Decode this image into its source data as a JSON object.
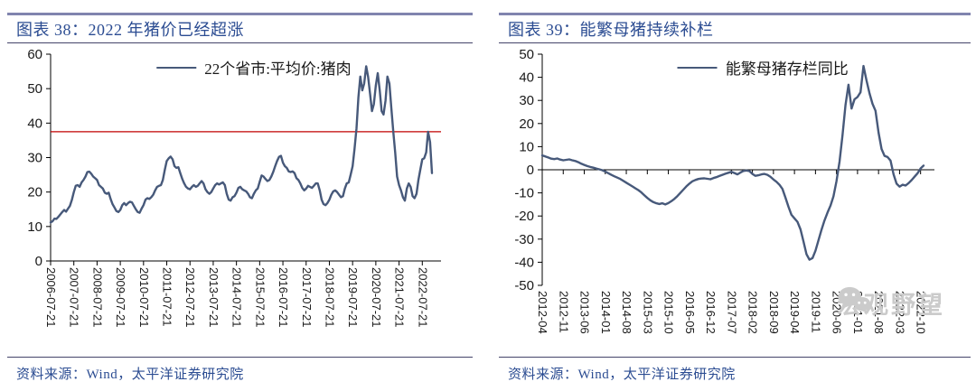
{
  "watermark": {
    "text": "宏观野望",
    "icon": "wechat-logo-icon"
  },
  "colors": {
    "series": "#47597A",
    "refline": "#C00000",
    "title_text": "#2B4C92",
    "top_border": "#8084AE",
    "rule": "#44446A",
    "axis": "#000000",
    "watermark": "#cbcbcb"
  },
  "chart_data": [
    {
      "type": "line",
      "title": "图表 38：2022 年猪价已经超涨",
      "legend": "22个省市:平均价:猪肉",
      "source": "资料来源：Wind，太平洋证券研究院",
      "series_color": "#47597A",
      "ylim": [
        0,
        60
      ],
      "y_ticks": [
        0,
        10,
        20,
        30,
        40,
        50,
        60
      ],
      "refline": {
        "value": 37.5,
        "color": "#C00000"
      },
      "x_tick_every": 12,
      "x_tick_labels": [
        "2006-07-21",
        "2007-07-21",
        "2008-07-21",
        "2009-07-21",
        "2010-07-21",
        "2011-07-21",
        "2012-07-21",
        "2013-07-21",
        "2014-07-21",
        "2015-07-21",
        "2016-07-21",
        "2017-07-21",
        "2018-07-21",
        "2019-07-21",
        "2020-07-21",
        "2021-07-21",
        "2022-07-21"
      ],
      "x_start": "2006-07",
      "x_step": "monthly",
      "values": [
        11.2,
        11.5,
        12.3,
        12.2,
        12.8,
        13.5,
        14.2,
        14.8,
        14.3,
        15.2,
        16.0,
        17.8,
        20.0,
        21.8,
        22.0,
        21.5,
        22.8,
        23.5,
        24.5,
        25.8,
        25.9,
        25.3,
        24.5,
        24.0,
        23.5,
        22.0,
        21.5,
        21.0,
        19.8,
        19.5,
        19.8,
        18.0,
        16.5,
        15.5,
        14.5,
        14.2,
        14.8,
        16.2,
        16.8,
        16.2,
        16.8,
        17.2,
        17.0,
        16.0,
        15.0,
        14.2,
        14.0,
        15.2,
        16.2,
        17.8,
        18.2,
        18.0,
        18.5,
        19.2,
        20.5,
        21.5,
        21.8,
        22.0,
        23.5,
        26.5,
        29.0,
        29.8,
        30.3,
        29.5,
        27.5,
        27.0,
        27.2,
        25.5,
        23.8,
        22.5,
        21.5,
        21.0,
        20.8,
        21.5,
        22.0,
        21.5,
        21.8,
        22.5,
        23.2,
        22.5,
        20.8,
        20.0,
        19.5,
        20.0,
        21.0,
        22.0,
        22.5,
        22.2,
        22.5,
        22.8,
        22.0,
        19.5,
        17.8,
        17.5,
        18.5,
        18.8,
        19.8,
        21.2,
        21.5,
        20.8,
        20.5,
        20.2,
        19.5,
        18.5,
        18.2,
        19.5,
        20.5,
        21.0,
        23.0,
        24.8,
        24.5,
        23.8,
        23.2,
        23.5,
        24.5,
        25.8,
        27.5,
        29.0,
        30.2,
        30.5,
        28.5,
        27.5,
        27.0,
        26.0,
        25.8,
        26.0,
        25.5,
        24.0,
        23.5,
        22.5,
        21.2,
        20.5,
        21.0,
        21.8,
        21.5,
        21.2,
        21.8,
        22.5,
        22.5,
        20.5,
        17.8,
        16.5,
        16.2,
        16.8,
        17.8,
        19.2,
        20.2,
        20.5,
        20.0,
        19.2,
        18.5,
        18.8,
        21.0,
        22.5,
        22.8,
        25.0,
        27.5,
        32.5,
        38.5,
        47.5,
        53.5,
        49.5,
        51.5,
        56.5,
        53.5,
        48.5,
        43.5,
        45.5,
        51.0,
        54.5,
        49.5,
        43.5,
        42.5,
        46.5,
        53.5,
        51.5,
        44.5,
        37.5,
        31.5,
        24.5,
        22.0,
        20.5,
        18.5,
        17.5,
        21.0,
        22.5,
        21.5,
        18.8,
        18.2,
        19.5,
        23.5,
        26.5,
        29.5,
        29.8,
        31.5,
        37.5,
        34.5,
        25.5
      ]
    },
    {
      "type": "line",
      "title": "图表 39：能繁母猪持续补栏",
      "legend": "能繁母猪存栏同比",
      "source": "资料来源：Wind，太平洋证券研究院",
      "series_color": "#47597A",
      "ylim": [
        -50,
        50
      ],
      "y_ticks": [
        -50,
        -40,
        -30,
        -20,
        -10,
        0,
        10,
        20,
        30,
        40,
        50
      ],
      "x_tick_every": 7,
      "x_tick_labels": [
        "2012-04",
        "2012-11",
        "2013-06",
        "2014-01",
        "2014-08",
        "2015-03",
        "2015-10",
        "2016-05",
        "2016-12",
        "2017-07",
        "2018-02",
        "2018-09",
        "2019-04",
        "2019-11",
        "2020-06",
        "2021-01",
        "2021-08",
        "2022-03",
        "2022-10"
      ],
      "x_start": "2012-04",
      "x_step": "monthly",
      "values": [
        6.2,
        5.8,
        5.3,
        4.8,
        4.6,
        4.9,
        4.4,
        4.1,
        4.3,
        4.5,
        4.1,
        3.8,
        3.3,
        2.6,
        2.1,
        1.6,
        1.2,
        0.9,
        0.5,
        0.2,
        -0.2,
        -0.8,
        -1.5,
        -2.2,
        -2.8,
        -3.4,
        -4.0,
        -4.8,
        -5.6,
        -6.4,
        -7.2,
        -8.0,
        -8.8,
        -9.8,
        -11.0,
        -12.2,
        -13.2,
        -14.0,
        -14.5,
        -14.8,
        -14.5,
        -15.0,
        -14.4,
        -13.6,
        -12.6,
        -11.4,
        -10.0,
        -8.6,
        -7.2,
        -6.0,
        -5.0,
        -4.4,
        -4.0,
        -3.8,
        -3.7,
        -3.9,
        -4.1,
        -3.6,
        -3.2,
        -2.7,
        -2.2,
        -1.7,
        -1.3,
        -0.9,
        -1.4,
        -2.0,
        -1.2,
        -0.5,
        -0.3,
        -0.6,
        -1.8,
        -2.6,
        -2.4,
        -2.0,
        -1.8,
        -2.2,
        -3.0,
        -4.2,
        -5.2,
        -6.5,
        -8.3,
        -12.0,
        -16.0,
        -19.5,
        -21.0,
        -22.5,
        -25.8,
        -31.0,
        -36.5,
        -38.9,
        -38.2,
        -35.0,
        -30.5,
        -26.0,
        -22.0,
        -18.5,
        -15.5,
        -11.5,
        -5.0,
        3.5,
        15.0,
        28.0,
        36.8,
        26.5,
        30.5,
        31.5,
        33.5,
        44.9,
        38.5,
        33.0,
        28.5,
        25.5,
        16.0,
        9.0,
        6.0,
        5.5,
        4.0,
        -2.0,
        -6.0,
        -7.3,
        -6.5,
        -6.8,
        -5.8,
        -4.5,
        -3.0,
        -1.5,
        0.6,
        1.8
      ]
    }
  ]
}
